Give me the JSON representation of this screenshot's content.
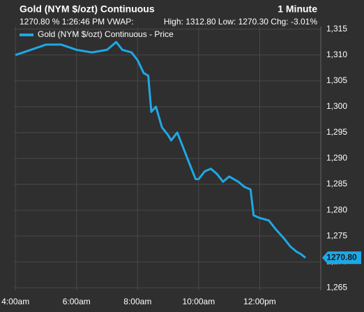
{
  "chart_data": {
    "type": "line",
    "title": "Gold (NYM $/ozt) Continuous",
    "interval": "1 Minute",
    "info_left": "1270.80  % 1:26:46 PM VWAP:",
    "info_right": "High: 1312.80 Low: 1270.30 Chg: -3.01%",
    "last_price_label": "1270.80",
    "x": [
      4.0,
      4.5,
      5.0,
      5.5,
      6.0,
      6.5,
      7.0,
      7.3,
      7.5,
      7.8,
      8.0,
      8.2,
      8.35,
      8.45,
      8.6,
      8.8,
      9.0,
      9.1,
      9.3,
      9.5,
      9.7,
      9.9,
      10.0,
      10.2,
      10.4,
      10.6,
      10.8,
      11.0,
      11.3,
      11.5,
      11.7,
      11.8,
      12.0,
      12.3,
      12.5,
      12.8,
      13.0,
      13.2,
      13.35,
      13.5
    ],
    "series": [
      {
        "name": "Gold (NYM $/ozt) Continuous - Price",
        "color": "#1fa8e6",
        "values": [
          1310,
          1311,
          1312,
          1312,
          1311,
          1310.5,
          1311,
          1312.5,
          1311,
          1310.5,
          1309,
          1306.5,
          1306,
          1299,
          1300,
          1296,
          1294.5,
          1293.5,
          1295,
          1292,
          1289,
          1286,
          1286,
          1287.5,
          1288,
          1287,
          1285.5,
          1286.5,
          1285.5,
          1284.5,
          1284,
          1279,
          1278.5,
          1278,
          1276.5,
          1274.5,
          1273,
          1272,
          1271.5,
          1270.8
        ]
      }
    ],
    "xlim": [
      3.95,
      14.0
    ],
    "xticks": [
      {
        "value": 4,
        "label": "4:00am"
      },
      {
        "value": 6,
        "label": "6:00am"
      },
      {
        "value": 8,
        "label": "8:00am"
      },
      {
        "value": 10,
        "label": "10:00am"
      },
      {
        "value": 12,
        "label": "12:00pm"
      }
    ],
    "ylim": [
      1264.5,
      1315.5
    ],
    "yticks": [
      {
        "value": 1265,
        "label": "1,265"
      },
      {
        "value": 1270,
        "label": "1,270"
      },
      {
        "value": 1275,
        "label": "1,275"
      },
      {
        "value": 1280,
        "label": "1,280"
      },
      {
        "value": 1285,
        "label": "1,285"
      },
      {
        "value": 1290,
        "label": "1,290"
      },
      {
        "value": 1295,
        "label": "1,295"
      },
      {
        "value": 1300,
        "label": "1,300"
      },
      {
        "value": 1305,
        "label": "1,305"
      },
      {
        "value": 1310,
        "label": "1,310"
      },
      {
        "value": 1315,
        "label": "1,315"
      }
    ],
    "grid": true
  }
}
